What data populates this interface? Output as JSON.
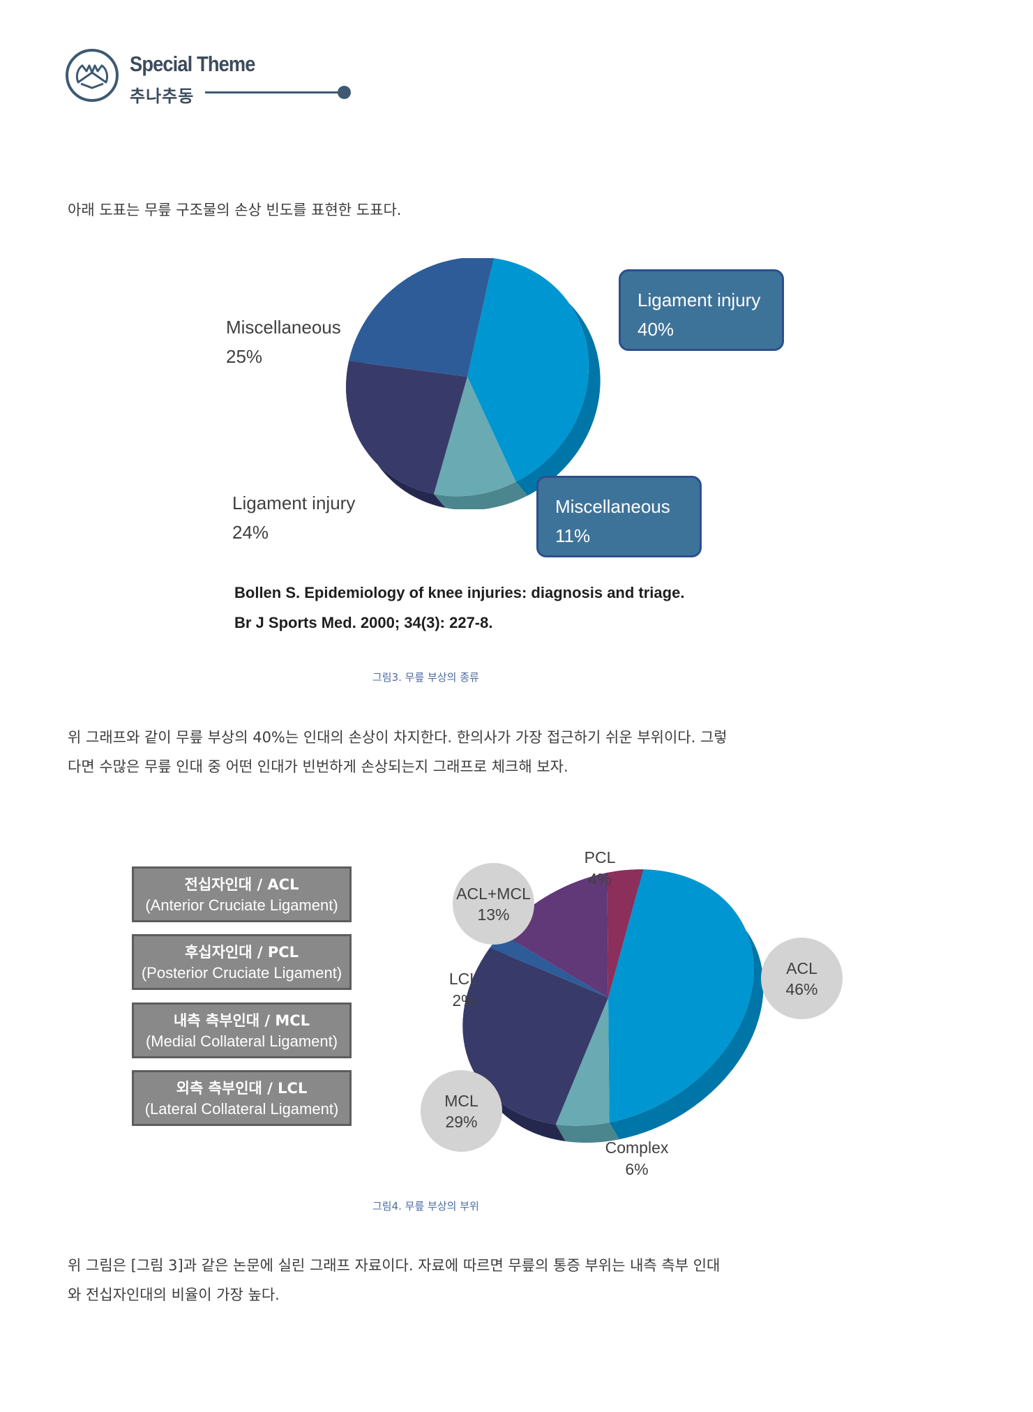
{
  "header": {
    "title": "Special Theme",
    "subtitle": "추나추동",
    "icon": "hands-icon"
  },
  "intro_text": "아래 도표는 무릎 구조물의 손상 빈도를 표현한 도표다.",
  "figure3": {
    "labels": [
      {
        "name": "Ligament injury",
        "pct": "40%"
      },
      {
        "name": "Miscellaneous",
        "pct": "25%"
      },
      {
        "name": "Ligament injury",
        "pct": "24%"
      },
      {
        "name": "Miscellaneous",
        "pct": "11%"
      }
    ],
    "reference_line1": "Bollen S. Epidemiology of knee injuries: diagnosis and triage.",
    "reference_line2": "Br J Sports Med. 2000; 34(3): 227-8.",
    "caption": "그림3. 무릎 부상의 종류"
  },
  "middle_text": {
    "line1": "위 그래프와 같이 무릎 부상의 40%는 인대의 손상이 차지한다. 한의사가 가장 접근하기 쉬운 부위이다. 그렇",
    "line2": "다면 수많은 무릎 인대 중 어떤 인대가 빈번하게 손상되는지 그래프로 체크해 보자."
  },
  "figure4": {
    "legend": [
      {
        "ko": "전십자인대 / ACL",
        "en": "(Anterior Cruciate Ligament)"
      },
      {
        "ko": "후십자인대 / PCL",
        "en": "(Posterior Cruciate Ligament)"
      },
      {
        "ko": "내측 측부인대 / MCL",
        "en": "(Medial Collateral Ligament)"
      },
      {
        "ko": "외측 측부인대 / LCL",
        "en": "(Lateral Collateral Ligament)"
      }
    ],
    "labels": {
      "pcl": {
        "name": "PCL",
        "pct": "4%"
      },
      "acl_mcl": {
        "name": "ACL+MCL",
        "pct": "13%"
      },
      "acl": {
        "name": "ACL",
        "pct": "46%"
      },
      "lcl": {
        "name": "LCL",
        "pct": "2%"
      },
      "mcl": {
        "name": "MCL",
        "pct": "29%"
      },
      "complex": {
        "name": "Complex",
        "pct": "6%"
      }
    },
    "caption": "그림4. 무릎 부상의 부위"
  },
  "closing_text": {
    "line1": "위 그림은 [그림 3]과 같은 논문에 실린 그래프 자료이다. 자료에 따르면 무릎의 통증 부위는 내측 측부 인대",
    "line2": "와 전십자인대의 비율이 가장 높다."
  },
  "chart_data": [
    {
      "type": "pie",
      "categories": [
        "Ligament injury",
        "Miscellaneous",
        "Ligament injury",
        "Miscellaneous"
      ],
      "values": [
        40,
        11,
        24,
        25
      ],
      "colors": [
        "#0096d2",
        "#6aaab2",
        "#383a6a",
        "#2d5c98"
      ],
      "side_colors": [
        "#0076a8",
        "#4b868e",
        "#25284e",
        "#23497a"
      ]
    },
    {
      "type": "pie",
      "categories": [
        "ACL",
        "Complex",
        "MCL",
        "LCL",
        "ACL+MCL",
        "PCL"
      ],
      "values": [
        46,
        6,
        29,
        2,
        13,
        4
      ],
      "colors": [
        "#0096d2",
        "#6aaab2",
        "#383a6a",
        "#2d5c98",
        "#613878",
        "#8c2f5a"
      ],
      "side_colors": [
        "#0076a8",
        "#4b868e",
        "#25284e",
        "#23497a",
        "#4a2a5c",
        "#6b2244"
      ]
    }
  ]
}
